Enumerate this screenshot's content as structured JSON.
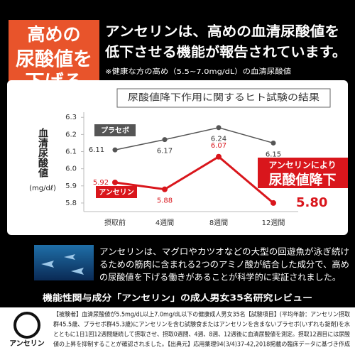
{
  "headline": {
    "badge": [
      "高めの",
      "尿酸値を",
      "下げる"
    ],
    "lines": [
      "アンセリンは、高めの血清尿酸値を",
      "低下させる機能が報告されています。"
    ],
    "note": "※健康な方の高め（5.5~7.0mg/dL）の血清尿酸値"
  },
  "chart_data": {
    "type": "line",
    "title": "尿酸値降下作用に関するヒト試験の結果",
    "y_label": "血清尿酸値",
    "y_unit": "(mg/dℓ)",
    "categories": [
      "摂取前",
      "4週間",
      "8週間",
      "12週間"
    ],
    "series": [
      {
        "name": "プラセボ",
        "color": "#555555",
        "values": [
          6.11,
          6.17,
          6.24,
          6.15
        ],
        "value_labels": [
          "6.11",
          "6.17",
          "6.24",
          "6.15"
        ]
      },
      {
        "name": "アンセリン",
        "color": "#d9161c",
        "values": [
          5.92,
          5.88,
          6.07,
          5.8
        ],
        "value_labels": [
          "5.92",
          "5.88",
          "6.07",
          "5.80"
        ]
      }
    ],
    "ylim": [
      5.75,
      6.33
    ],
    "yticks": [
      5.8,
      5.9,
      {
        "value": 6,
        "label": "6.0"
      },
      6.1,
      6.2,
      6.3
    ],
    "annotation": [
      "アンセリンにより",
      "尿酸値降下"
    ]
  },
  "description": [
    "アンセリンは、マグロやカツオなどの大型の回遊魚が泳ぎ続け",
    "るための筋肉に含まれる2つのアミノ酸が結合した成分で、高め",
    "の尿酸値を下げる働きがあることが科学的に実証されました。"
  ],
  "study": "機能性関与成分「アンセリン」の成人男女35名研究レビュー",
  "logo": "アンセリン",
  "footnote": [
    "【被験者】血清尿酸値が5.5mg/dL以上7.0mg/dL以下の健康成人男女35名【試験項目】(平均年齢：アンセリン摂取",
    "群45.5歳、プラセボ群45.3歳)にアンセリンを含む試験食またはアンセリンを含まないプラセボ(いずれも錠剤)を水",
    "とともに1日1回12週間継続して摂取させ、摂取0週間、4週、8週、12週後に血清尿酸値を測定。摂取12週目には尿酸",
    "値の上昇を抑制することが確認されました。【出典元】応用薬理94(3/4)37-42,2018掲載の臨床データに基づき作成"
  ]
}
